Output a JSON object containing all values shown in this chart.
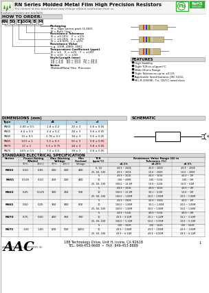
{
  "title": "RN Series Molded Metal Film High Precision Resistors",
  "subtitle": "The content of this specification may change without notification from us.",
  "custom": "Custom solutions are available.",
  "features": [
    "High Stability",
    "Tight TCR to ±5ppm/°C",
    "Wide Ohmic Range",
    "Tight Tolerances up to ±0.1%",
    "Applicable Specifications: JISC 5102,",
    "MIL-R-10509E, T-o, CD/CC rated class"
  ],
  "order_codes": [
    "RN",
    "50",
    "E",
    "100K",
    "B",
    "M"
  ],
  "dim_headers": [
    "Type",
    "l",
    "d1",
    "c",
    "d"
  ],
  "dim_rows": [
    [
      "RN50",
      "2.00 ± 0.5",
      "1.8 ± 0.2",
      "20 ± 3",
      "0.6 ± 0.05"
    ],
    [
      "RN55",
      "4.0 ± 0.5",
      "2.4 ± 0.2",
      "28 ± 3",
      "0.6 ± 0.05"
    ],
    [
      "RN60",
      "10 ± 0.5",
      "2.78 ± 0.2",
      "38 ± 3",
      "0.6 ± 0.05"
    ],
    [
      "RN65",
      "13.5 ± 1",
      "5.5 ± 0.3",
      "50 ± 3",
      "0.8 ± 0.05"
    ],
    [
      "RN70",
      "17 ± 1",
      "5.5 ± 0.75",
      "28 ± 3",
      "0.8 ± 0.05"
    ],
    [
      "RN75",
      "24.5 ± 0.5",
      "7.0 ± 0.5",
      "38 ± 3",
      "0.8 ± 0.05"
    ]
  ],
  "dim_row_colors": [
    "#ffffff",
    "#ffffff",
    "#ffffff",
    "#ffd0d0",
    "#ffd0d0",
    "#ffffff"
  ],
  "spec_row_groups": [
    {
      "series": "RN50",
      "p70": "0.10",
      "p125": "0.05",
      "v70": "200",
      "v125": "200",
      "vmax": "400",
      "rows": [
        {
          "tcr": "5, 10",
          "r01": "49.9 ~ 200K",
          "r025": "49.9 ~ 200K",
          "r05": "49.9 ~ 200K"
        },
        {
          "tcr": "25, 50, 100",
          "r01": "49.9 ~ 200K",
          "r025": "10.0 ~ 200K",
          "r05": "10.0 ~ 200K"
        }
      ]
    },
    {
      "series": "RN55",
      "p70": "0.125",
      "p125": "0.10",
      "v70": "250",
      "v125": "200",
      "vmax": "400",
      "rows": [
        {
          "tcr": "5",
          "r01": "49.9 ~ 301K",
          "r025": "49.9 ~ 301K",
          "r05": "49.9 ~ 1M"
        },
        {
          "tcr": "10",
          "r01": "100 ~ 499K",
          "r025": "100 ~ 511K",
          "r05": "100 ~ 1M"
        },
        {
          "tcr": "25, 50, 100",
          "r01": "100.0 ~ 14.1M",
          "r025": "10.0 ~ 511K",
          "r05": "10.0 ~ 51M"
        }
      ]
    },
    {
      "series": "RN60",
      "p70": "0.25",
      "p125": "0.125",
      "v70": "300",
      "v125": "250",
      "vmax": "500",
      "rows": [
        {
          "tcr": "5",
          "r01": "49.9 ~ 301K",
          "r025": "49.9 ~ 301K",
          "r05": "49.9 ~ 1M"
        },
        {
          "tcr": "10",
          "r01": "100.0 ~ 13.1M",
          "r025": "30.1 ~ 511K",
          "r05": "10.0 ~ 1M"
        },
        {
          "tcr": "25, 50, 100",
          "r01": "100.0 ~ 1.00M",
          "r025": "30.0 ~ 1.00M",
          "r05": "10.0 ~ 1.00M"
        }
      ]
    },
    {
      "series": "RN65",
      "p70": "0.50",
      "p125": "0.25",
      "v70": "350",
      "v125": "300",
      "vmax": "600",
      "rows": [
        {
          "tcr": "5",
          "r01": "49.9 ~ 390K",
          "r025": "49.9 ~ 390K",
          "r05": "49.9 ~ 1M"
        },
        {
          "tcr": "10",
          "r01": "100.0 ~ 1.00M",
          "r025": "30.1 ~ 1.00M",
          "r05": "20.0 ~ 1.00M"
        },
        {
          "tcr": "25, 50, 100",
          "r01": "100.0 ~ 1.00M",
          "r025": "30.0 ~ 1.00M",
          "r05": "10.0 ~ 1.00M"
        }
      ]
    },
    {
      "series": "RN70",
      "p70": "0.75",
      "p125": "0.50",
      "v70": "400",
      "v125": "350",
      "vmax": "700",
      "rows": [
        {
          "tcr": "5",
          "r01": "49.9 ~ 511K",
          "r025": "49.9 ~ 511K",
          "r05": "49.9 ~ 1M"
        },
        {
          "tcr": "10",
          "r01": "49.9 ~ 3.32M",
          "r025": "20.1 ~ 3.32M",
          "r05": "10.1 ~ 3.32M"
        },
        {
          "tcr": "25, 50, 100",
          "r01": "100.0 ~ 5.11M",
          "r025": "50.0 ~ 5.05M",
          "r05": "10.0 ~ 5.11M"
        }
      ]
    },
    {
      "series": "RN75",
      "p70": "1.50",
      "p125": "1.00",
      "v70": "600",
      "v125": "500",
      "vmax": "1000",
      "rows": [
        {
          "tcr": "5",
          "r01": "100 ~ 562K",
          "r025": "100 ~ 562K",
          "r05": "100 ~ 562K"
        },
        {
          "tcr": "10",
          "r01": "49.9 ~ 1.00M",
          "r025": "49.9 ~ 1.00M",
          "r05": "49.9 ~ 1.00M"
        },
        {
          "tcr": "25, 50, 100",
          "r01": "49.9 ~ 6.11M",
          "r025": "49.9 ~ 6.05M",
          "r05": "49.9 ~ 6.11M"
        }
      ]
    }
  ],
  "footer_address": "188 Technology Drive, Unit H, Irvine, CA 92618",
  "footer_phone": "TEL: 949-453-9688  •  FAX: 949-453-8889"
}
